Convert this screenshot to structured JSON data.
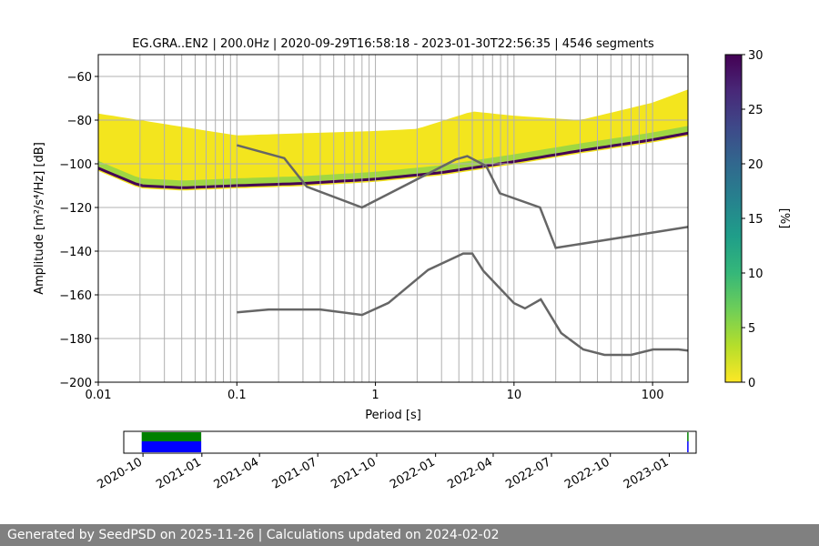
{
  "chart_data": {
    "type": "ppsd",
    "title": "EG.GRA..EN2 | 200.0Hz | 2020-09-29T16:58:18 - 2023-01-30T22:56:35 | 4546 segments",
    "xlabel": "Period [s]",
    "ylabel": "Amplitude [m²/s⁴/Hz] [dB]",
    "x_scale": "log",
    "xlim": [
      0.01,
      180
    ],
    "ylim": [
      -200,
      -50
    ],
    "x_ticks": [
      {
        "value": 0.01,
        "label": "0.01"
      },
      {
        "value": 0.1,
        "label": "0.1"
      },
      {
        "value": 1,
        "label": "1"
      },
      {
        "value": 10,
        "label": "10"
      },
      {
        "value": 100,
        "label": "100"
      }
    ],
    "y_ticks": [
      -60,
      -80,
      -100,
      -120,
      -140,
      -160,
      -180,
      -200
    ],
    "y_tick_labels": [
      "−60",
      "−80",
      "−100",
      "−120",
      "−140",
      "−160",
      "−180",
      "−200"
    ],
    "grid": true,
    "colorbar": {
      "label": "[%]",
      "min": 0,
      "max": 30,
      "ticks": [
        0,
        5,
        10,
        15,
        20,
        25,
        30
      ],
      "colors": [
        "#fde725",
        "#b5de2b",
        "#6ece58",
        "#35b779",
        "#1f9e89",
        "#26828e",
        "#31688e",
        "#3e4989",
        "#482878",
        "#440154"
      ]
    },
    "noise_models": [
      {
        "name": "NHNM",
        "points": [
          [
            0.1,
            -91.5
          ],
          [
            0.22,
            -97.4
          ],
          [
            0.32,
            -110.5
          ],
          [
            0.8,
            -120
          ],
          [
            3.8,
            -98
          ],
          [
            4.6,
            -96.5
          ],
          [
            6.3,
            -101
          ],
          [
            7.9,
            -113.5
          ],
          [
            15.4,
            -120
          ],
          [
            20,
            -138.5
          ],
          [
            180,
            -128.9
          ]
        ]
      },
      {
        "name": "NLNM",
        "points": [
          [
            0.1,
            -168
          ],
          [
            0.17,
            -166.7
          ],
          [
            0.4,
            -166.7
          ],
          [
            0.8,
            -169.2
          ],
          [
            1.24,
            -163.7
          ],
          [
            2.4,
            -148.6
          ],
          [
            4.3,
            -141.1
          ],
          [
            5,
            -141.1
          ],
          [
            6,
            -149
          ],
          [
            10,
            -163.8
          ],
          [
            12,
            -166.2
          ],
          [
            15.6,
            -162.1
          ],
          [
            21.9,
            -177.5
          ],
          [
            31.6,
            -185
          ],
          [
            45,
            -187.5
          ],
          [
            70,
            -187.5
          ],
          [
            101,
            -185
          ],
          [
            154,
            -185
          ],
          [
            180,
            -185.5
          ]
        ]
      }
    ],
    "ppsd_mode": {
      "name": "mode",
      "points": [
        [
          0.01,
          -102
        ],
        [
          0.02,
          -110
        ],
        [
          0.04,
          -111
        ],
        [
          0.1,
          -110
        ],
        [
          0.3,
          -109
        ],
        [
          1,
          -107
        ],
        [
          3,
          -104
        ],
        [
          10,
          -99
        ],
        [
          30,
          -94
        ],
        [
          100,
          -89
        ],
        [
          180,
          -86
        ]
      ]
    },
    "ppsd_upper": {
      "points": [
        [
          0.01,
          -77
        ],
        [
          0.02,
          -80
        ],
        [
          0.05,
          -84
        ],
        [
          0.1,
          -87
        ],
        [
          0.3,
          -86
        ],
        [
          1,
          -85
        ],
        [
          2,
          -84
        ],
        [
          5,
          -76
        ],
        [
          10,
          -78
        ],
        [
          30,
          -80
        ],
        [
          100,
          -72
        ],
        [
          180,
          -66
        ]
      ]
    },
    "timeline": {
      "tick_labels": [
        "2020-10",
        "2021-01",
        "2021-04",
        "2021-07",
        "2021-10",
        "2022-01",
        "2022-04",
        "2022-07",
        "2022-10",
        "2023-01"
      ],
      "start": "2020-09-01",
      "end": "2023-02-12",
      "coverage": [
        {
          "start": "2020-09-29",
          "end": "2020-12-31"
        },
        {
          "start": "2023-01-29",
          "end": "2023-01-30"
        }
      ],
      "colors": {
        "used": "#0000ff",
        "available": "#008000"
      }
    }
  },
  "footer": {
    "text": "Generated by SeedPSD on 2025-11-26 | Calculations updated on 2024-02-02"
  }
}
